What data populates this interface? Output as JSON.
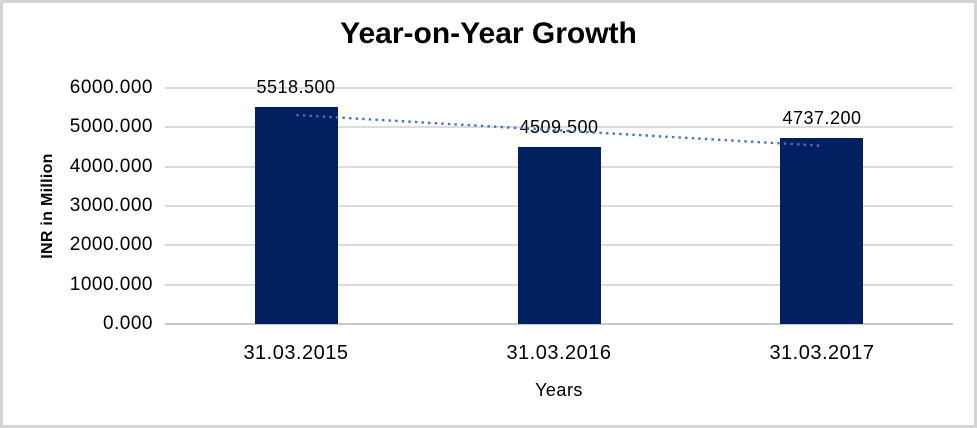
{
  "frame": {
    "border_color": "#d4d4d4",
    "background": "#ffffff"
  },
  "chart_data": {
    "type": "bar",
    "title": "Year-on-Year Growth",
    "xlabel": "Years",
    "ylabel": "INR in Million",
    "categories": [
      "31.03.2015",
      "31.03.2016",
      "31.03.2017"
    ],
    "values": [
      5518.5,
      4509.5,
      4737.2
    ],
    "data_labels": [
      "5518.500",
      "4509.500",
      "4737.200"
    ],
    "y_ticks": [
      "6000.000",
      "5000.000",
      "4000.000",
      "3000.000",
      "2000.000",
      "1000.000",
      "0.000"
    ],
    "ylim": [
      0,
      6000
    ],
    "grid": true,
    "legend": "none",
    "colors": {
      "bar": "#002060",
      "gridline": "#dcdcdc",
      "axis_line": "#c9c9c9",
      "trendline": "#4472C4",
      "text": "#000000"
    },
    "trendline": {
      "type": "linear",
      "style": "dotted",
      "color": "#4472C4",
      "start_value": 5312,
      "end_value": 4531
    }
  }
}
